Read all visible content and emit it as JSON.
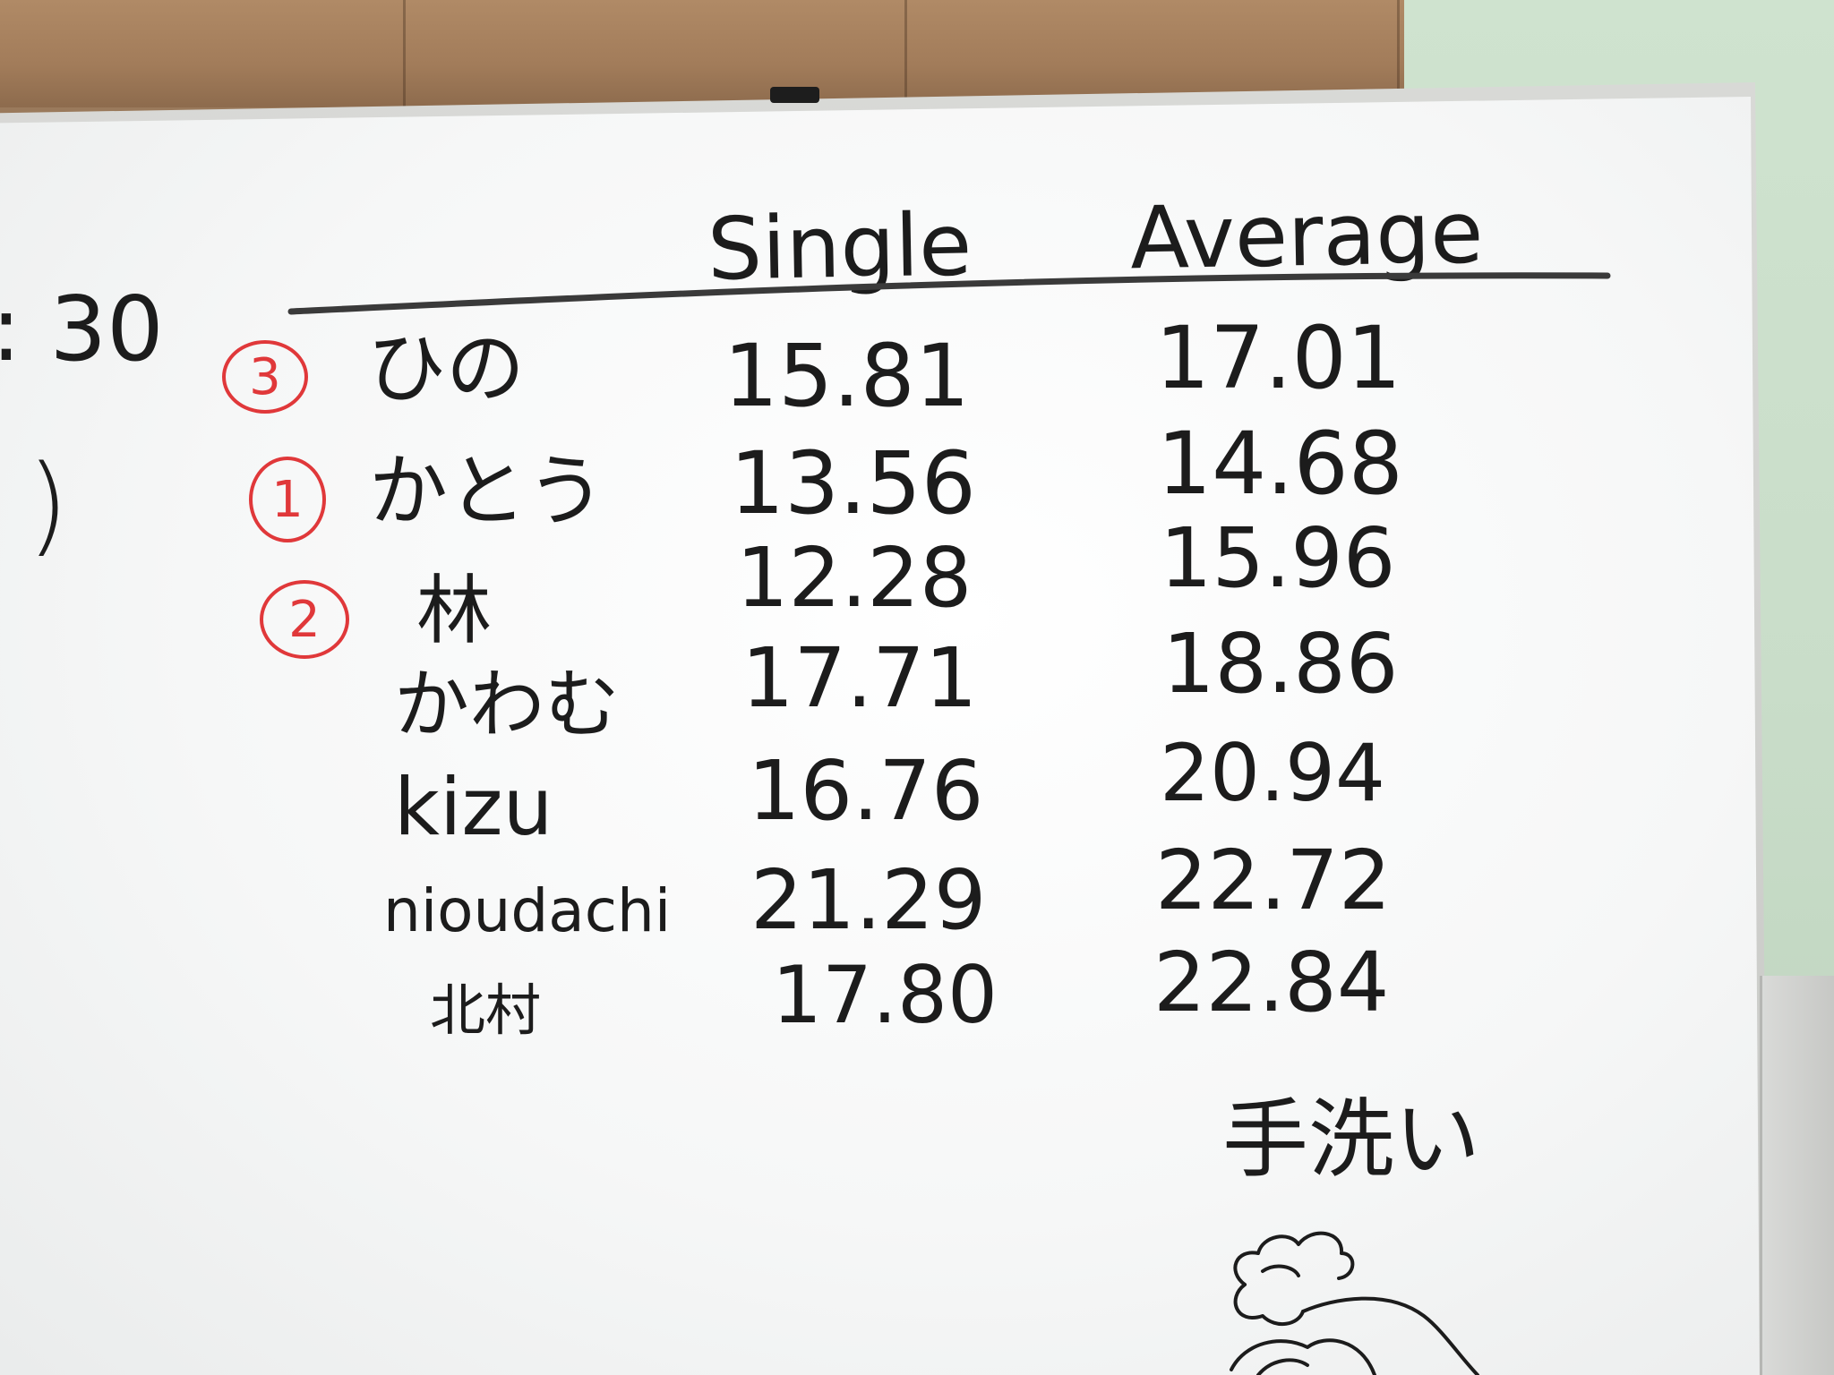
{
  "board": {
    "time_fragment": ": 30",
    "paren_fragment": ")",
    "headers": {
      "single": "Single",
      "average": "Average"
    },
    "rows": [
      {
        "rank": "3",
        "name": "ひの",
        "single": "15.81",
        "average": "17.01"
      },
      {
        "rank": "1",
        "name": "かとう",
        "single": "13.56",
        "average": "14.68"
      },
      {
        "rank": "2",
        "name": "林",
        "single": "12.28",
        "average": "15.96"
      },
      {
        "rank": "",
        "name": "かわむ",
        "single": "17.71",
        "average": "18.86"
      },
      {
        "rank": "",
        "name": "kizu",
        "single": "16.76",
        "average": "20.94"
      },
      {
        "rank": "",
        "name": "nioudachi",
        "single": "21.29",
        "average": "22.72"
      },
      {
        "rank": "",
        "name": "北村",
        "single": "17.80",
        "average": "22.84"
      }
    ],
    "note": "手洗い"
  },
  "colors": {
    "ink": "#1c1c1c",
    "red_ink": "#e0383a",
    "board": "#f6f7f7",
    "frame": "#c7c8c5",
    "wall_green": "#c9ddc9",
    "wall_wood": "#a27c5a"
  }
}
